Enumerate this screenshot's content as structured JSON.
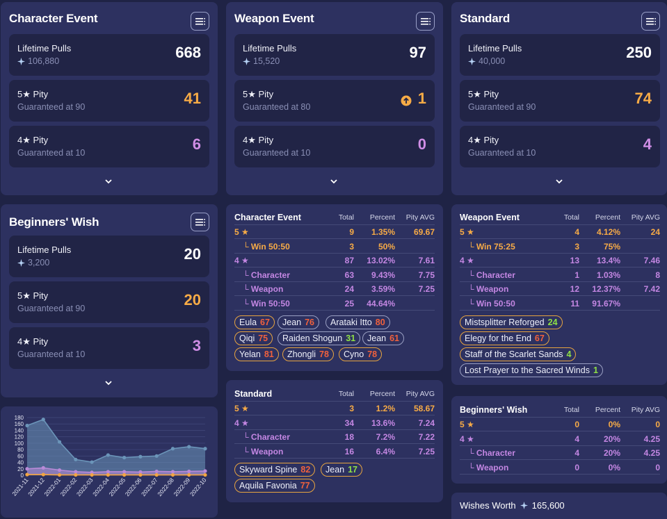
{
  "banners": [
    {
      "title": "Character Event",
      "lifetime_label": "Lifetime Pulls",
      "lifetime_value": "668",
      "lifetime_sub": "106,880",
      "five_label": "5★ Pity",
      "five_sub": "Guaranteed at 90",
      "five_value": "41",
      "four_label": "4★ Pity",
      "four_sub": "Guaranteed at 10",
      "four_value": "6"
    },
    {
      "title": "Weapon Event",
      "lifetime_label": "Lifetime Pulls",
      "lifetime_value": "97",
      "lifetime_sub": "15,520",
      "five_label": "5★ Pity",
      "five_sub": "Guaranteed at 80",
      "five_value": "1",
      "four_label": "4★ Pity",
      "four_sub": "Guaranteed at 10",
      "four_value": "0"
    },
    {
      "title": "Standard",
      "lifetime_label": "Lifetime Pulls",
      "lifetime_value": "250",
      "lifetime_sub": "40,000",
      "five_label": "5★ Pity",
      "five_sub": "Guaranteed at 90",
      "five_value": "74",
      "four_label": "4★ Pity",
      "four_sub": "Guaranteed at 10",
      "four_value": "4"
    },
    {
      "title": "Beginners' Wish",
      "lifetime_label": "Lifetime Pulls",
      "lifetime_value": "20",
      "lifetime_sub": "3,200",
      "five_label": "5★ Pity",
      "five_sub": "Guaranteed at 90",
      "five_value": "20",
      "four_label": "4★ Pity",
      "four_sub": "Guaranteed at 10",
      "four_value": "3"
    }
  ],
  "tables": {
    "char": {
      "title": "Character Event",
      "h_total": "Total",
      "h_pct": "Percent",
      "h_avg": "Pity AVG",
      "rows": [
        {
          "label": "5 ★",
          "total": "9",
          "pct": "1.35%",
          "avg": "69.67"
        },
        {
          "label": "└ Win 50:50",
          "total": "3",
          "pct": "50%",
          "avg": ""
        },
        {
          "label": "4 ★",
          "total": "87",
          "pct": "13.02%",
          "avg": "7.61"
        },
        {
          "label": "└ Character",
          "total": "63",
          "pct": "9.43%",
          "avg": "7.75"
        },
        {
          "label": "└ Weapon",
          "total": "24",
          "pct": "3.59%",
          "avg": "7.25"
        },
        {
          "label": "└ Win 50:50",
          "total": "25",
          "pct": "44.64%",
          "avg": ""
        }
      ],
      "tags": [
        {
          "name": "Eula",
          "n": "67"
        },
        {
          "name": "Jean",
          "n": "76"
        },
        {
          "name": "Arataki Itto",
          "n": "80"
        },
        {
          "name": "Qiqi",
          "n": "75"
        },
        {
          "name": "Raiden Shogun",
          "n": "31"
        },
        {
          "name": "Jean",
          "n": "61"
        },
        {
          "name": "Yelan",
          "n": "81"
        },
        {
          "name": "Zhongli",
          "n": "78"
        },
        {
          "name": "Cyno",
          "n": "78"
        }
      ]
    },
    "weap": {
      "title": "Weapon Event",
      "h_total": "Total",
      "h_pct": "Percent",
      "h_avg": "Pity AVG",
      "rows": [
        {
          "label": "5 ★",
          "total": "4",
          "pct": "4.12%",
          "avg": "24"
        },
        {
          "label": "└ Win 75:25",
          "total": "3",
          "pct": "75%",
          "avg": ""
        },
        {
          "label": "4 ★",
          "total": "13",
          "pct": "13.4%",
          "avg": "7.46"
        },
        {
          "label": "└ Character",
          "total": "1",
          "pct": "1.03%",
          "avg": "8"
        },
        {
          "label": "└ Weapon",
          "total": "12",
          "pct": "12.37%",
          "avg": "7.42"
        },
        {
          "label": "└ Win 50:50",
          "total": "11",
          "pct": "91.67%",
          "avg": ""
        }
      ],
      "tags": [
        {
          "name": "Mistsplitter Reforged",
          "n": "24"
        },
        {
          "name": "Elegy for the End",
          "n": "67"
        },
        {
          "name": "Staff of the Scarlet Sands",
          "n": "4"
        },
        {
          "name": "Lost Prayer to the Sacred Winds",
          "n": "1"
        }
      ]
    },
    "std": {
      "title": "Standard",
      "h_total": "Total",
      "h_pct": "Percent",
      "h_avg": "Pity AVG",
      "rows": [
        {
          "label": "5 ★",
          "total": "3",
          "pct": "1.2%",
          "avg": "58.67"
        },
        {
          "label": "4 ★",
          "total": "34",
          "pct": "13.6%",
          "avg": "7.24"
        },
        {
          "label": "└ Character",
          "total": "18",
          "pct": "7.2%",
          "avg": "7.22"
        },
        {
          "label": "└ Weapon",
          "total": "16",
          "pct": "6.4%",
          "avg": "7.25"
        }
      ],
      "tags": [
        {
          "name": "Skyward Spine",
          "n": "82"
        },
        {
          "name": "Jean",
          "n": "17"
        },
        {
          "name": "Aquila Favonia",
          "n": "77"
        }
      ]
    },
    "beg": {
      "title": "Beginners' Wish",
      "h_total": "Total",
      "h_pct": "Percent",
      "h_avg": "Pity AVG",
      "rows": [
        {
          "label": "5 ★",
          "total": "0",
          "pct": "0%",
          "avg": "0"
        },
        {
          "label": "4 ★",
          "total": "4",
          "pct": "20%",
          "avg": "4.25"
        },
        {
          "label": "└ Character",
          "total": "4",
          "pct": "20%",
          "avg": "4.25"
        },
        {
          "label": "└ Weapon",
          "total": "0",
          "pct": "0%",
          "avg": "0"
        }
      ],
      "tags": []
    }
  },
  "wishes_worth": {
    "label": "Wishes Worth",
    "value": "165,600"
  },
  "chart_data": {
    "type": "area",
    "x": [
      "2021-11",
      "2021-12",
      "2022-01",
      "2022-02",
      "2022-03",
      "2022-04",
      "2022-05",
      "2022-06",
      "2022-07",
      "2022-08",
      "2022-09",
      "2022-10"
    ],
    "yticks": [
      "0",
      "20",
      "40",
      "60",
      "80",
      "100",
      "120",
      "140",
      "160",
      "180"
    ],
    "ylim": [
      0,
      180
    ],
    "series": [
      {
        "values": [
          155,
          174,
          104,
          49,
          41,
          63,
          55,
          58,
          60,
          83,
          89,
          83
        ],
        "color": "#6b95b9"
      },
      {
        "values": [
          20,
          23,
          16,
          11,
          9,
          11,
          11,
          10,
          12,
          11,
          12,
          13
        ],
        "color": "#b98ad8"
      },
      {
        "values": [
          2,
          2,
          1,
          1,
          1,
          1,
          1,
          1,
          1,
          1,
          1,
          1
        ],
        "color": "#f2a542"
      }
    ]
  },
  "colors": {
    "bg": "#1f2345",
    "panel": "#2d3160",
    "card": "#212446",
    "orange": "#f7ab46",
    "purple": "#d08ee6"
  }
}
